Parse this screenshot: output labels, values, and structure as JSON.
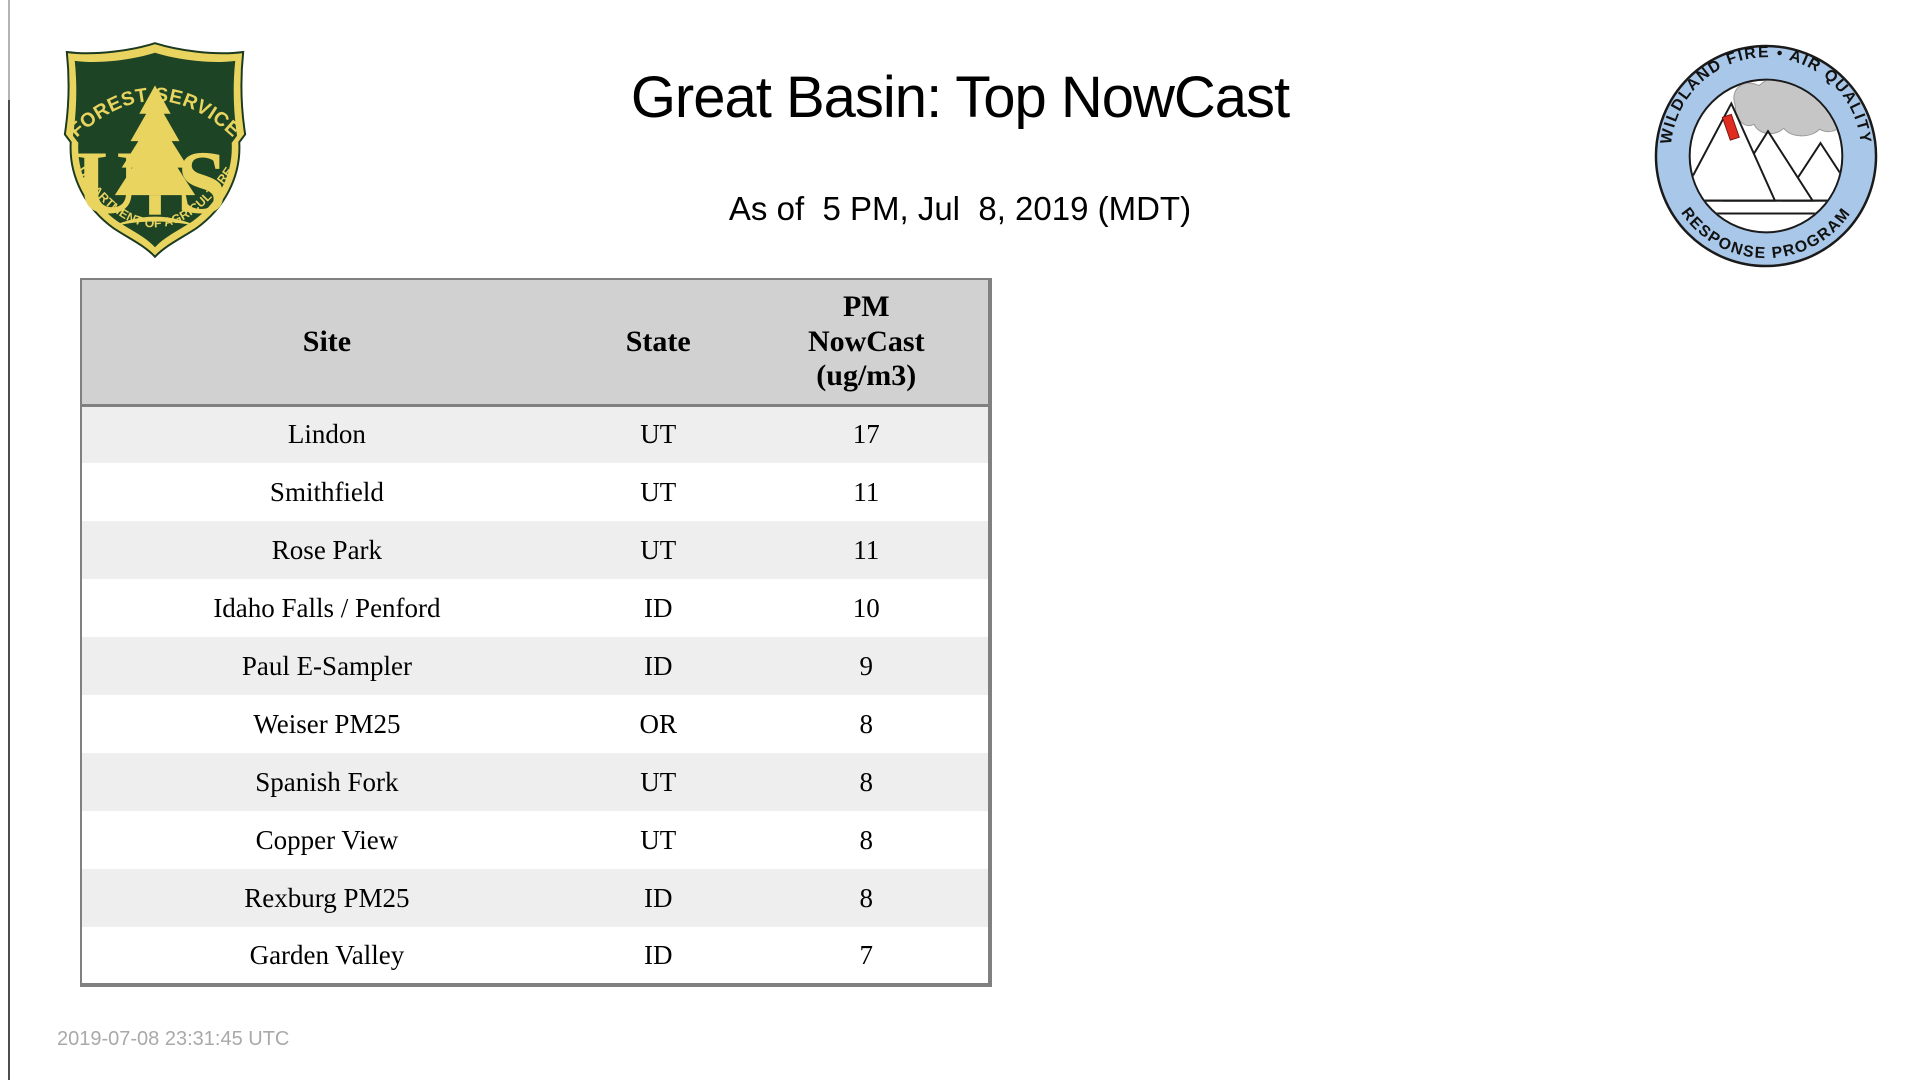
{
  "page": {
    "title": "Great Basin: Top NowCast",
    "subtitle": "As of  5 PM, Jul  8, 2019 (MDT)",
    "timestamp": "2019-07-08 23:31:45 UTC"
  },
  "logos": {
    "usfs": {
      "name": "US Forest Service shield",
      "arc_top": "FOREST SERVICE",
      "arc_bottom": "DEPARTMENT OF AGRICULTURE",
      "monogram_left": "U",
      "monogram_right": "S",
      "colors": {
        "green": "#1e4426",
        "gold": "#e8d45f"
      }
    },
    "wfaqrp": {
      "name": "Wildland Fire Air Quality Response Program badge",
      "arc_top": "WILDLAND FIRE • AIR QUALITY",
      "arc_bottom": "RESPONSE PROGRAM",
      "colors": {
        "ring": "#a9c7e8",
        "smoke": "#c6c6c6",
        "fire": "#e02b20",
        "outline": "#1a1a1a"
      }
    }
  },
  "table": {
    "columns": [
      "Site",
      "State",
      "PM NowCast (ug/m3)"
    ],
    "rows": [
      {
        "site": "Lindon",
        "state": "UT",
        "value": "17"
      },
      {
        "site": "Smithfield",
        "state": "UT",
        "value": "11"
      },
      {
        "site": "Rose Park",
        "state": "UT",
        "value": "11"
      },
      {
        "site": "Idaho Falls / Penford",
        "state": "ID",
        "value": "10"
      },
      {
        "site": "Paul E-Sampler",
        "state": "ID",
        "value": "9"
      },
      {
        "site": "Weiser PM25",
        "state": "OR",
        "value": "8"
      },
      {
        "site": "Spanish Fork",
        "state": "UT",
        "value": "8"
      },
      {
        "site": "Copper View",
        "state": "UT",
        "value": "8"
      },
      {
        "site": "Rexburg PM25",
        "state": "ID",
        "value": "8"
      },
      {
        "site": "Garden Valley",
        "state": "ID",
        "value": "7"
      }
    ],
    "colors": {
      "header_bg": "#d1d1d1",
      "row_odd": "#eeeeee",
      "row_even": "#ffffff",
      "border": "#808080"
    }
  }
}
